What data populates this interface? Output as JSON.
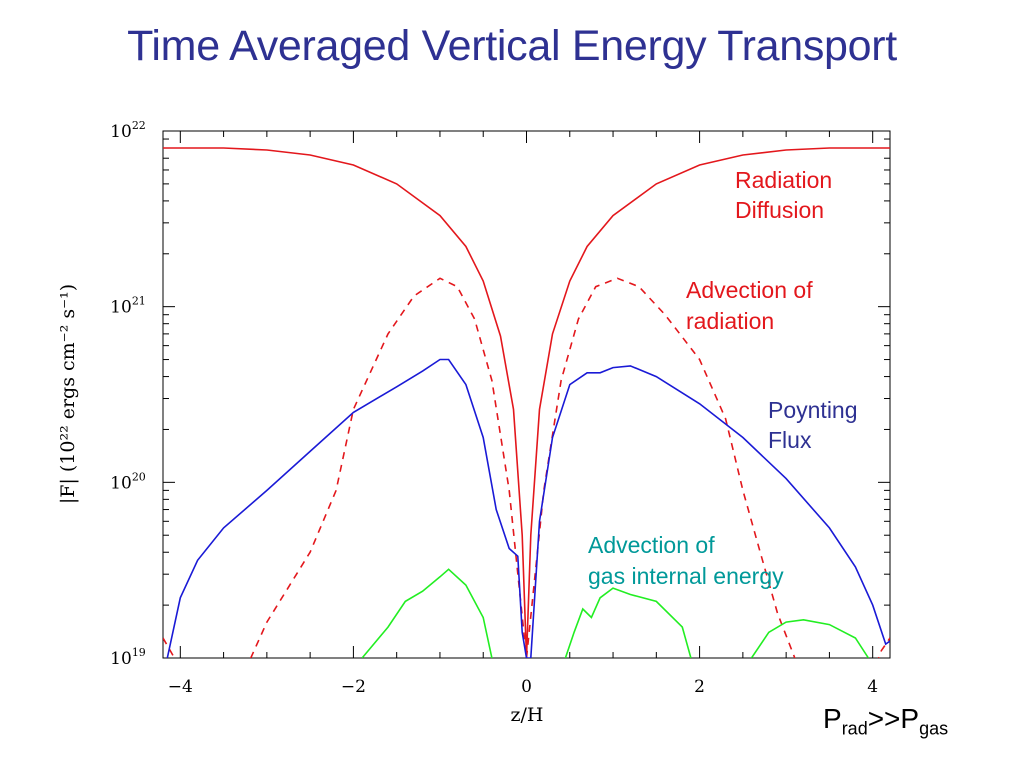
{
  "title": "Time Averaged Vertical Energy Transport",
  "condition_note": {
    "p": "P",
    "rad": "rad",
    "gg": ">>",
    "p2": "P",
    "gas": "gas"
  },
  "colors": {
    "title": "#2e3192",
    "radiation": "#e3171c",
    "poynting": "#1a1ad6",
    "gas": "#22ee22",
    "gas_label": "#009999",
    "poynting_label": "#2e3192"
  },
  "chart_data": {
    "type": "line",
    "xlabel": "z/H",
    "ylabel": "|F| (10²² ergs cm⁻² s⁻¹)",
    "xlim": [
      -4.2,
      4.2
    ],
    "ylim": [
      1e+19,
      1e+22
    ],
    "yscale": "log",
    "grid": false,
    "x_ticks": [
      {
        "value": -4,
        "label": "−4"
      },
      {
        "value": -2,
        "label": "−2"
      },
      {
        "value": 0,
        "label": "0"
      },
      {
        "value": 2,
        "label": "2"
      },
      {
        "value": 4,
        "label": "4"
      }
    ],
    "y_ticks": [
      {
        "value": 1e+19,
        "base": "10",
        "exp": "19"
      },
      {
        "value": 1e+20,
        "base": "10",
        "exp": "20"
      },
      {
        "value": 1e+21,
        "base": "10",
        "exp": "21"
      },
      {
        "value": 1e+22,
        "base": "10",
        "exp": "22"
      }
    ],
    "series": [
      {
        "key": "radiation",
        "style": "solid",
        "color": "#e3171c",
        "points": [
          [
            -4.2,
            8e+21
          ],
          [
            -3.5,
            8e+21
          ],
          [
            -3.0,
            7.8e+21
          ],
          [
            -2.5,
            7.3e+21
          ],
          [
            -2.0,
            6.4e+21
          ],
          [
            -1.5,
            5e+21
          ],
          [
            -1.0,
            3.3e+21
          ],
          [
            -0.7,
            2.2e+21
          ],
          [
            -0.5,
            1.4e+21
          ],
          [
            -0.3,
            6.8e+20
          ],
          [
            -0.15,
            2.6e+20
          ],
          [
            -0.05,
            5e+19
          ],
          [
            0.0,
            1e+19
          ],
          [
            0.05,
            5e+19
          ],
          [
            0.15,
            2.6e+20
          ],
          [
            0.3,
            7e+20
          ],
          [
            0.5,
            1.4e+21
          ],
          [
            0.7,
            2.2e+21
          ],
          [
            1.0,
            3.3e+21
          ],
          [
            1.5,
            5e+21
          ],
          [
            2.0,
            6.4e+21
          ],
          [
            2.5,
            7.3e+21
          ],
          [
            3.0,
            7.8e+21
          ],
          [
            3.5,
            8e+21
          ],
          [
            4.2,
            8e+21
          ]
        ]
      },
      {
        "key": "advection_radiation",
        "style": "dashed",
        "color": "#e3171c",
        "points": [
          [
            -4.2,
            1.3e+19
          ],
          [
            -3.85,
            6.5e+18
          ],
          [
            -3.25,
            8.5e+18
          ],
          [
            -3.0,
            1.6e+19
          ],
          [
            -2.5,
            4e+19
          ],
          [
            -2.2,
            9e+19
          ],
          [
            -2.0,
            2.6e+20
          ],
          [
            -1.6,
            7e+20
          ],
          [
            -1.3,
            1.15e+21
          ],
          [
            -1.0,
            1.45e+21
          ],
          [
            -0.8,
            1.3e+21
          ],
          [
            -0.6,
            8.5e+20
          ],
          [
            -0.4,
            3.8e+20
          ],
          [
            -0.2,
            9e+19
          ],
          [
            0.0,
            1e+19
          ],
          [
            0.2,
            9e+19
          ],
          [
            0.4,
            3.8e+20
          ],
          [
            0.6,
            8.5e+20
          ],
          [
            0.8,
            1.3e+21
          ],
          [
            1.05,
            1.45e+21
          ],
          [
            1.3,
            1.3e+21
          ],
          [
            1.6,
            9e+20
          ],
          [
            2.0,
            5e+20
          ],
          [
            2.3,
            2.3e+20
          ],
          [
            2.5,
            9e+19
          ],
          [
            2.7,
            4e+19
          ],
          [
            2.9,
            1.8e+19
          ],
          [
            3.1,
            1e+19
          ],
          [
            3.25,
            7e+18
          ],
          [
            3.95,
            7e+18
          ],
          [
            4.1,
            1.1e+19
          ],
          [
            4.2,
            1.3e+19
          ]
        ]
      },
      {
        "key": "poynting",
        "style": "solid",
        "color": "#1a1ad6",
        "points": [
          [
            -4.15,
            1e+19
          ],
          [
            -4.0,
            2.2e+19
          ],
          [
            -3.8,
            3.6e+19
          ],
          [
            -3.5,
            5.5e+19
          ],
          [
            -3.0,
            9e+19
          ],
          [
            -2.5,
            1.5e+20
          ],
          [
            -2.0,
            2.5e+20
          ],
          [
            -1.5,
            3.5e+20
          ],
          [
            -1.2,
            4.3e+20
          ],
          [
            -1.0,
            5e+20
          ],
          [
            -0.9,
            5e+20
          ],
          [
            -0.7,
            3.6e+20
          ],
          [
            -0.5,
            1.8e+20
          ],
          [
            -0.35,
            7e+19
          ],
          [
            -0.2,
            4.2e+19
          ],
          [
            -0.1,
            3.8e+19
          ],
          [
            -0.05,
            1.4e+19
          ],
          [
            0.0,
            1e+19
          ],
          [
            0.05,
            1e+19
          ],
          [
            0.15,
            6e+19
          ],
          [
            0.3,
            1.8e+20
          ],
          [
            0.5,
            3.6e+20
          ],
          [
            0.7,
            4.2e+20
          ],
          [
            0.85,
            4.2e+20
          ],
          [
            1.0,
            4.5e+20
          ],
          [
            1.2,
            4.6e+20
          ],
          [
            1.5,
            4e+20
          ],
          [
            2.0,
            2.8e+20
          ],
          [
            2.5,
            1.8e+20
          ],
          [
            3.0,
            1.05e+20
          ],
          [
            3.5,
            5.5e+19
          ],
          [
            3.8,
            3.3e+19
          ],
          [
            4.0,
            2e+19
          ],
          [
            4.15,
            1.2e+19
          ],
          [
            4.2,
            1.25e+19
          ]
        ]
      },
      {
        "key": "gas",
        "style": "solid",
        "color": "#22ee22",
        "segments": [
          [
            [
              -1.9,
              1e+19
            ],
            [
              -1.6,
              1.5e+19
            ],
            [
              -1.4,
              2.1e+19
            ],
            [
              -1.2,
              2.4e+19
            ],
            [
              -1.0,
              2.9e+19
            ],
            [
              -0.9,
              3.2e+19
            ],
            [
              -0.7,
              2.6e+19
            ],
            [
              -0.5,
              1.7e+19
            ],
            [
              -0.4,
              1e+19
            ]
          ],
          [
            [
              0.45,
              1e+19
            ],
            [
              0.55,
              1.4e+19
            ],
            [
              0.65,
              1.9e+19
            ],
            [
              0.75,
              1.7e+19
            ],
            [
              0.85,
              2.2e+19
            ],
            [
              1.0,
              2.5e+19
            ],
            [
              1.2,
              2.3e+19
            ],
            [
              1.5,
              2.1e+19
            ],
            [
              1.8,
              1.5e+19
            ],
            [
              1.9,
              1e+19
            ]
          ],
          [
            [
              2.6,
              1e+19
            ],
            [
              2.8,
              1.4e+19
            ],
            [
              3.0,
              1.6e+19
            ],
            [
              3.2,
              1.65e+19
            ],
            [
              3.5,
              1.55e+19
            ],
            [
              3.8,
              1.3e+19
            ],
            [
              3.95,
              1e+19
            ]
          ]
        ]
      }
    ],
    "annotations": {
      "radiation": [
        "Radiation",
        "Diffusion"
      ],
      "advection_radiation": [
        "Advection of",
        "radiation"
      ],
      "poynting": [
        "Poynting",
        "Flux"
      ],
      "gas": [
        "Advection of",
        "gas internal energy"
      ]
    }
  }
}
